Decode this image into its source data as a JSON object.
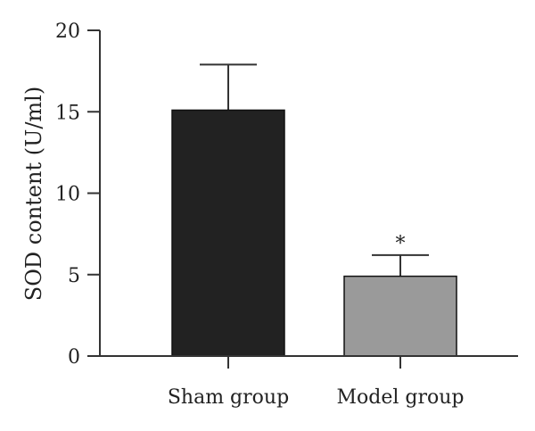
{
  "chart_data": {
    "type": "bar",
    "categories": [
      "Sham group",
      "Model group"
    ],
    "values": [
      15.1,
      4.9
    ],
    "error_upper": [
      17.9,
      6.2
    ],
    "annotations": [
      "",
      "*"
    ],
    "title": "",
    "xlabel": "",
    "ylabel": "SOD content (U/ml)",
    "ylim": [
      0,
      20
    ],
    "yticks": [
      "0",
      "5",
      "10",
      "15",
      "20"
    ],
    "grid": false,
    "legend": "none",
    "colors": {
      "bars": [
        "#222222",
        "#9a9a9a"
      ],
      "bar_stroke": "#111111",
      "axis": "#333333"
    }
  }
}
